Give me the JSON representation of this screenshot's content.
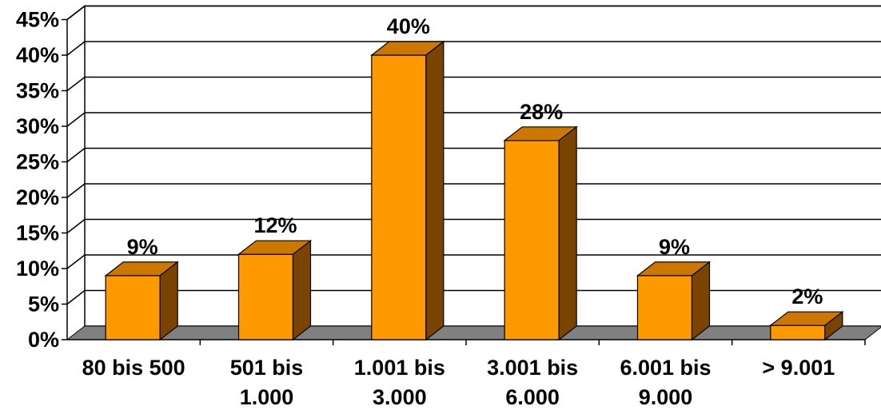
{
  "chart_data": {
    "type": "bar",
    "style": "3d-column",
    "categories": [
      [
        "80 bis 500"
      ],
      [
        "501 bis",
        "1.000"
      ],
      [
        "1.001 bis",
        "3.000"
      ],
      [
        "3.001 bis",
        "6.000"
      ],
      [
        "6.001 bis",
        "9.000"
      ],
      [
        "> 9.001"
      ]
    ],
    "values": [
      9,
      12,
      40,
      28,
      9,
      2
    ],
    "data_labels": [
      "9%",
      "12%",
      "40%",
      "28%",
      "9%",
      "2%"
    ],
    "y_ticks": [
      "0%",
      "5%",
      "10%",
      "15%",
      "20%",
      "25%",
      "30%",
      "35%",
      "40%",
      "45%"
    ],
    "ylim": [
      0,
      45
    ],
    "y_unit": "%",
    "grid": true,
    "legend": "none",
    "title": "",
    "xlabel": "",
    "ylabel": "",
    "colors": {
      "bar_front": "#FF9900",
      "bar_top": "#CC7700",
      "bar_side": "#7A4400",
      "floor": "#808080",
      "gridline": "#000000"
    }
  }
}
